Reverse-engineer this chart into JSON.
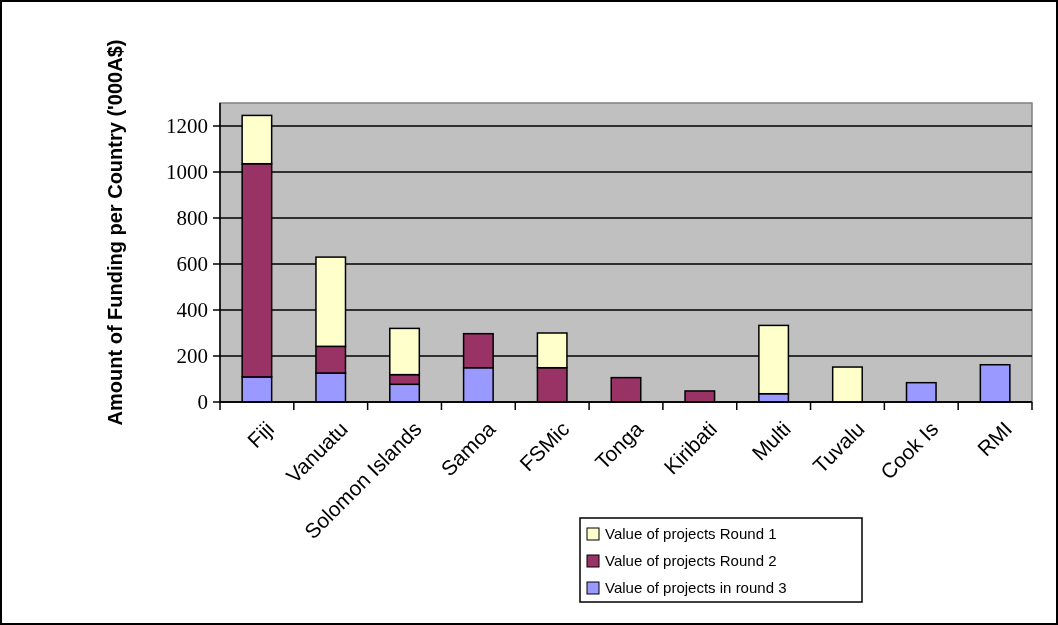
{
  "chart_data": {
    "type": "bar",
    "stacked": true,
    "ylabel": "Amount of Funding per Country ('000A$)",
    "categories": [
      "Fiji",
      "Vanuatu",
      "Solomon Islands",
      "Samoa",
      "FSMic",
      "Tonga",
      "Kiribati",
      "Multi",
      "Tuvalu",
      "Cook Is",
      "RMI"
    ],
    "series": [
      {
        "name": "Value of projects in round 3",
        "color": "#9999ff",
        "values": [
          109,
          126,
          77,
          149,
          null,
          null,
          null,
          36,
          null,
          84,
          162
        ]
      },
      {
        "name": "Value of projects Round 2",
        "color": "#993366",
        "values": [
          927,
          116,
          42,
          148,
          149,
          106,
          48,
          null,
          null,
          null,
          null
        ]
      },
      {
        "name": "Value of projects Round 1",
        "color": "#ffffcc",
        "values": [
          210,
          388,
          201,
          null,
          151,
          null,
          null,
          297,
          152,
          null,
          null
        ]
      }
    ],
    "ylim": [
      0,
      1300
    ],
    "yticks": [
      0,
      200,
      400,
      600,
      800,
      1000,
      1200
    ],
    "grid": "y",
    "legend": "bottom right"
  }
}
